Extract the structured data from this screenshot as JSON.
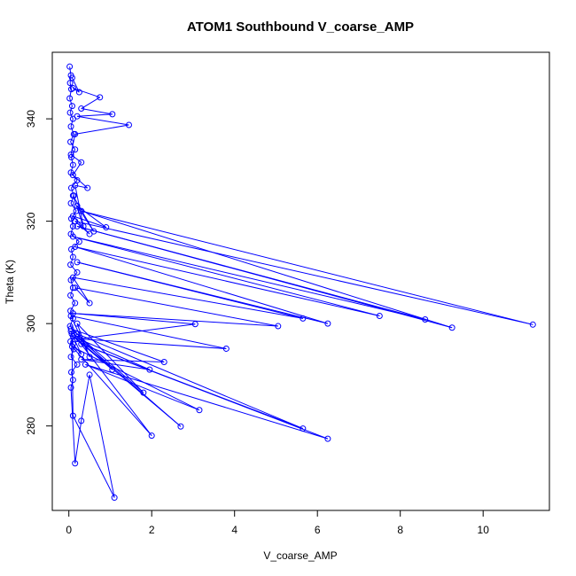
{
  "chart_data": {
    "type": "scatter",
    "title": "ATOM1 Southbound V_coarse_AMP",
    "xlabel": "V_coarse_AMP",
    "ylabel": "Theta (K)",
    "xlim": [
      -0.4,
      11.6
    ],
    "ylim": [
      263.5,
      353
    ],
    "x_ticks": [
      "0",
      "2",
      "4",
      "6",
      "8",
      "10"
    ],
    "y_ticks": [
      "280",
      "300",
      "320",
      "340"
    ],
    "grid": false,
    "legend": "none",
    "connect_points": true,
    "color": "#0000ff",
    "series": [
      {
        "points": [
          [
            0.02,
            350.2
          ],
          [
            0.05,
            348.5
          ],
          [
            0.03,
            347.0
          ],
          [
            0.06,
            345.8
          ],
          [
            0.02,
            344.0
          ],
          [
            0.08,
            342.5
          ],
          [
            0.03,
            341.2
          ],
          [
            0.1,
            340.0
          ],
          [
            0.05,
            338.5
          ],
          [
            0.12,
            337.0
          ],
          [
            0.04,
            335.5
          ],
          [
            0.15,
            334.0
          ],
          [
            0.06,
            332.5
          ],
          [
            0.1,
            331.0
          ],
          [
            0.05,
            329.5
          ],
          [
            0.2,
            328.0
          ],
          [
            0.06,
            326.5
          ],
          [
            0.12,
            325.0
          ],
          [
            0.05,
            323.5
          ],
          [
            0.18,
            322.0
          ],
          [
            0.06,
            320.5
          ],
          [
            0.1,
            319.0
          ],
          [
            0.05,
            317.5
          ],
          [
            0.25,
            316.0
          ],
          [
            0.06,
            314.5
          ],
          [
            0.1,
            313.0
          ],
          [
            0.04,
            311.5
          ],
          [
            0.2,
            310.0
          ],
          [
            0.05,
            308.5
          ],
          [
            0.1,
            307.0
          ],
          [
            0.04,
            305.5
          ],
          [
            0.15,
            304.0
          ],
          [
            0.04,
            302.5
          ],
          [
            0.1,
            301.0
          ],
          [
            0.03,
            299.5
          ],
          [
            0.2,
            298.0
          ],
          [
            0.04,
            296.5
          ],
          [
            0.12,
            295.0
          ],
          [
            0.05,
            293.5
          ],
          [
            0.2,
            292.0
          ],
          [
            0.06,
            290.5
          ],
          [
            0.1,
            289.0
          ],
          [
            0.05,
            287.5
          ],
          [
            0.15,
            272.7
          ],
          [
            0.3,
            281.0
          ],
          [
            0.5,
            290.0
          ],
          [
            1.1,
            266.0
          ],
          [
            0.1,
            282.0
          ],
          [
            0.07,
            298.0
          ],
          [
            0.3,
            294.0
          ],
          [
            0.1,
            296.0
          ],
          [
            0.05,
            298.5
          ],
          [
            2.7,
            279.9
          ],
          [
            0.2,
            297.0
          ],
          [
            2.0,
            278.1
          ],
          [
            0.08,
            295.5
          ],
          [
            3.15,
            283.1
          ],
          [
            0.4,
            292.0
          ],
          [
            6.25,
            277.5
          ],
          [
            0.3,
            296.0
          ],
          [
            5.65,
            279.5
          ],
          [
            0.2,
            298.0
          ],
          [
            1.05,
            291.0
          ],
          [
            0.1,
            297.5
          ],
          [
            1.95,
            291.0
          ],
          [
            0.3,
            293.0
          ],
          [
            2.3,
            292.5
          ],
          [
            0.05,
            299.0
          ],
          [
            1.8,
            286.5
          ],
          [
            0.2,
            300.0
          ],
          [
            0.5,
            293.5
          ],
          [
            0.05,
            301.5
          ],
          [
            3.8,
            295.1
          ],
          [
            0.25,
            297.0
          ],
          [
            3.05,
            299.9
          ],
          [
            0.1,
            302.0
          ],
          [
            5.05,
            299.5
          ],
          [
            0.15,
            307.0
          ],
          [
            0.5,
            304.0
          ],
          [
            0.1,
            309.0
          ],
          [
            5.65,
            301.0
          ],
          [
            0.2,
            312.0
          ],
          [
            6.25,
            300.0
          ],
          [
            0.15,
            315.0
          ],
          [
            7.5,
            301.5
          ],
          [
            0.1,
            317.0
          ],
          [
            8.6,
            300.8
          ],
          [
            0.2,
            319.0
          ],
          [
            9.25,
            299.2
          ],
          [
            0.3,
            322.0
          ],
          [
            11.2,
            299.8
          ],
          [
            0.15,
            320.0
          ],
          [
            0.5,
            317.5
          ],
          [
            0.1,
            321.0
          ],
          [
            0.9,
            318.8
          ],
          [
            0.2,
            323.0
          ],
          [
            0.6,
            318.0
          ],
          [
            0.1,
            325.0
          ],
          [
            0.35,
            319.0
          ],
          [
            0.15,
            327.0
          ],
          [
            0.45,
            326.5
          ],
          [
            0.1,
            329.0
          ],
          [
            0.3,
            331.5
          ],
          [
            0.05,
            333.0
          ],
          [
            0.15,
            337.0
          ],
          [
            1.45,
            338.8
          ],
          [
            0.2,
            340.5
          ],
          [
            1.05,
            340.9
          ],
          [
            0.3,
            342.0
          ],
          [
            0.75,
            344.2
          ],
          [
            0.1,
            346.0
          ],
          [
            0.25,
            345.2
          ],
          [
            0.08,
            348.0
          ]
        ]
      }
    ]
  }
}
